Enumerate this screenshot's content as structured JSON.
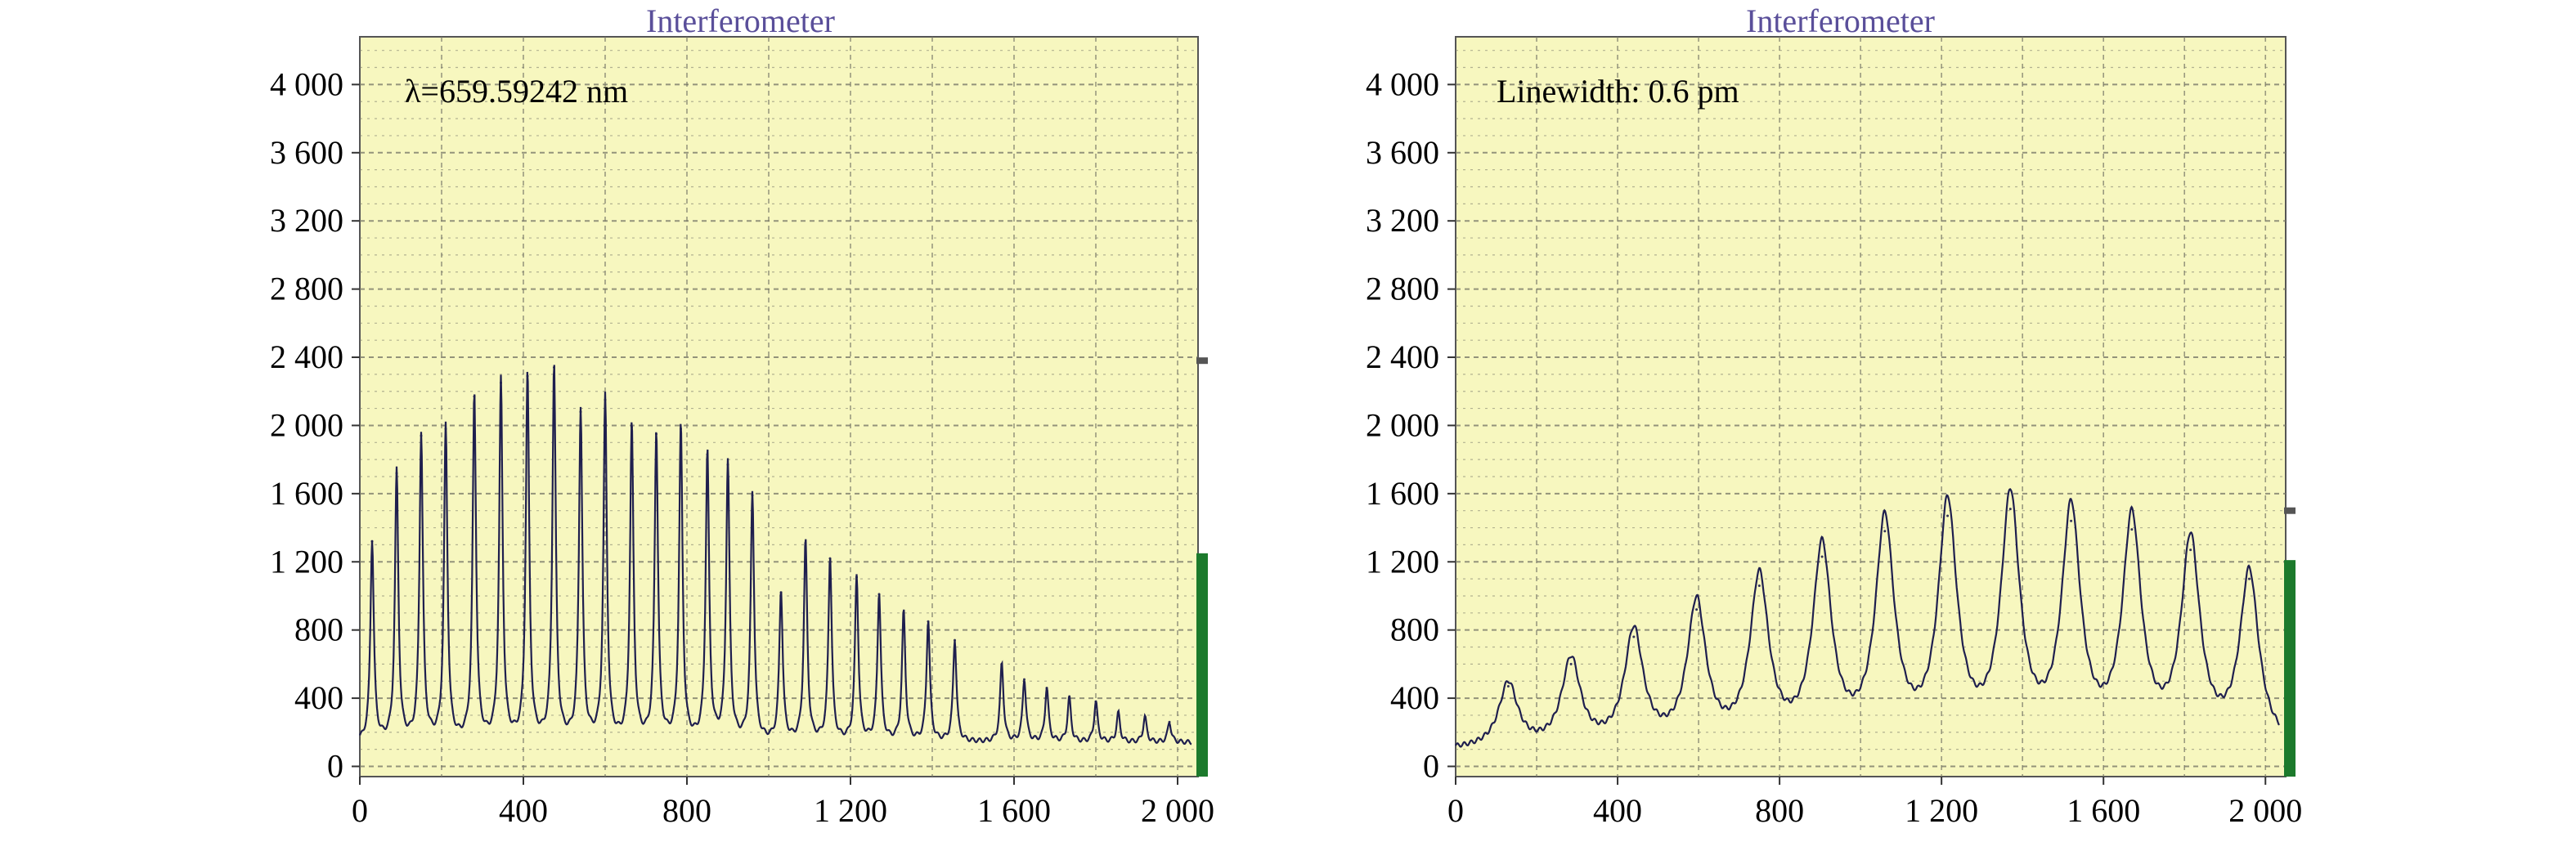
{
  "chart_data": [
    {
      "type": "line",
      "title": "Interferometer",
      "annotation": "λ=659.59242 nm",
      "xlabel": "",
      "ylabel": "",
      "xlim": [
        0,
        2050
      ],
      "ylim": [
        0,
        4000
      ],
      "xticks": [
        0,
        400,
        800,
        1200,
        1600,
        2000
      ],
      "xtick_labels": [
        "0",
        "400",
        "800",
        "1 200",
        "1 600",
        "2 000"
      ],
      "yticks": [
        0,
        400,
        800,
        1200,
        1600,
        2000,
        2400,
        2800,
        3200,
        3600,
        4000
      ],
      "ytick_labels": [
        "0",
        "400",
        "800",
        "1 200",
        "1 600",
        "2 000",
        "2 400",
        "2 800",
        "3 200",
        "3 600",
        "4 000"
      ],
      "grid": true,
      "baseline": 140,
      "peak_width": 5,
      "peaks": [
        {
          "x": 30,
          "y": 1320
        },
        {
          "x": 90,
          "y": 1720
        },
        {
          "x": 150,
          "y": 1940
        },
        {
          "x": 210,
          "y": 1980
        },
        {
          "x": 280,
          "y": 2170
        },
        {
          "x": 345,
          "y": 2250
        },
        {
          "x": 410,
          "y": 2290
        },
        {
          "x": 475,
          "y": 2340
        },
        {
          "x": 540,
          "y": 2080
        },
        {
          "x": 600,
          "y": 2150
        },
        {
          "x": 665,
          "y": 1990
        },
        {
          "x": 725,
          "y": 1950
        },
        {
          "x": 785,
          "y": 1980
        },
        {
          "x": 850,
          "y": 1830
        },
        {
          "x": 900,
          "y": 1770
        },
        {
          "x": 960,
          "y": 1590
        },
        {
          "x": 1030,
          "y": 1020
        },
        {
          "x": 1090,
          "y": 1310
        },
        {
          "x": 1150,
          "y": 1220
        },
        {
          "x": 1215,
          "y": 1110
        },
        {
          "x": 1270,
          "y": 1010
        },
        {
          "x": 1330,
          "y": 900
        },
        {
          "x": 1390,
          "y": 850
        },
        {
          "x": 1455,
          "y": 740
        },
        {
          "x": 1570,
          "y": 600
        },
        {
          "x": 1625,
          "y": 510
        },
        {
          "x": 1680,
          "y": 460
        },
        {
          "x": 1735,
          "y": 400
        },
        {
          "x": 1800,
          "y": 380
        },
        {
          "x": 1855,
          "y": 310
        },
        {
          "x": 1920,
          "y": 290
        },
        {
          "x": 1980,
          "y": 260
        }
      ],
      "side_bar_value": 1250,
      "side_marker_value": 2380,
      "colors": {
        "plot_bg": "#f7f7bf",
        "grid": "#7b7b6a",
        "line": "#1f1f4e",
        "bar": "#1c7a2c",
        "marker": "#555555",
        "title": "#5a4f9a"
      }
    },
    {
      "type": "line",
      "title": "Interferometer",
      "annotation": "Linewidth: 0.6 pm",
      "xlabel": "",
      "ylabel": "",
      "xlim": [
        0,
        2050
      ],
      "ylim": [
        0,
        4000
      ],
      "xticks": [
        0,
        400,
        800,
        1200,
        1600,
        2000
      ],
      "xtick_labels": [
        "0",
        "400",
        "800",
        "1 200",
        "1 600",
        "2 000"
      ],
      "yticks": [
        0,
        400,
        800,
        1200,
        1600,
        2000,
        2400,
        2800,
        3200,
        3600,
        4000
      ],
      "ytick_labels": [
        "0",
        "400",
        "800",
        "1 200",
        "1 600",
        "2 000",
        "2 400",
        "2 800",
        "3 200",
        "3 600",
        "4 000"
      ],
      "grid": true,
      "baseline": 90,
      "peak_width": 28,
      "peaks": [
        {
          "x": 130,
          "y": 470
        },
        {
          "x": 285,
          "y": 600
        },
        {
          "x": 440,
          "y": 760
        },
        {
          "x": 595,
          "y": 920
        },
        {
          "x": 750,
          "y": 1060
        },
        {
          "x": 905,
          "y": 1230
        },
        {
          "x": 1060,
          "y": 1380
        },
        {
          "x": 1215,
          "y": 1470
        },
        {
          "x": 1370,
          "y": 1510
        },
        {
          "x": 1520,
          "y": 1440
        },
        {
          "x": 1670,
          "y": 1390
        },
        {
          "x": 1815,
          "y": 1270
        },
        {
          "x": 1960,
          "y": 1100
        }
      ],
      "side_bar_value": 1210,
      "side_marker_value": 1500,
      "colors": {
        "plot_bg": "#f7f7bf",
        "grid": "#7b7b6a",
        "line": "#1f1f4e",
        "bar": "#1c7a2c",
        "marker": "#555555",
        "title": "#5a4f9a"
      }
    }
  ]
}
